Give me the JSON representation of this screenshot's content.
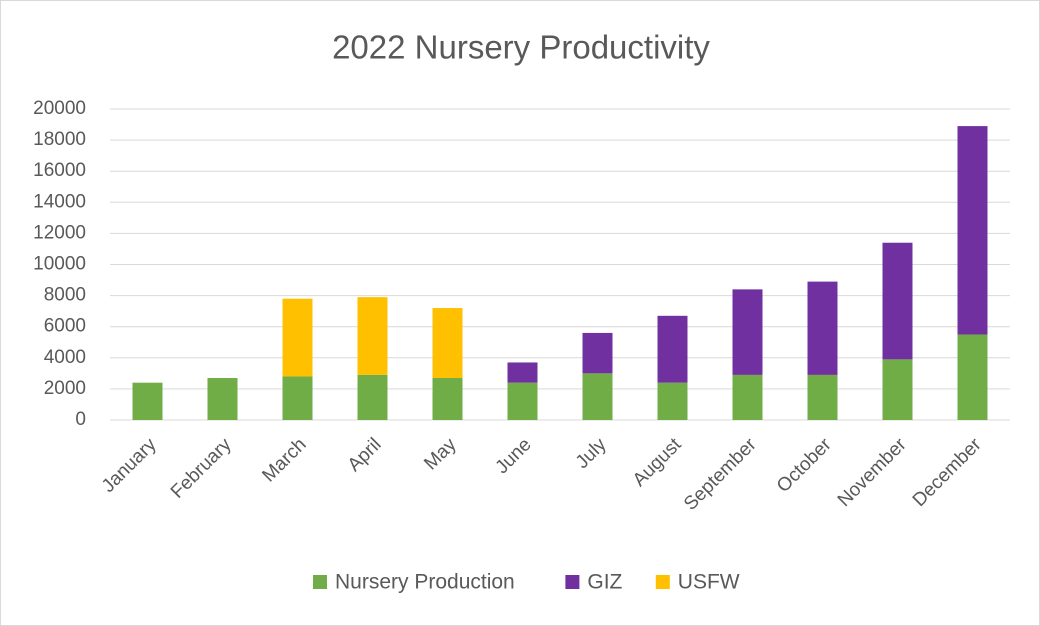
{
  "chart_data": {
    "type": "stacked_bar",
    "title": "2022 Nursery Productivity",
    "categories": [
      "January",
      "February",
      "March",
      "April",
      "May",
      "June",
      "July",
      "August",
      "September",
      "October",
      "November",
      "December"
    ],
    "series": [
      {
        "name": "Nursery Production",
        "color": "#70ad47",
        "values": [
          2400,
          2700,
          2800,
          2900,
          2700,
          2400,
          3000,
          2400,
          2900,
          2900,
          3900,
          5500
        ]
      },
      {
        "name": "GIZ",
        "color": "#7030a0",
        "values": [
          null,
          null,
          null,
          null,
          null,
          1300,
          2600,
          4300,
          5500,
          6000,
          7500,
          13400
        ]
      },
      {
        "name": "USFW",
        "color": "#ffc000",
        "values": [
          null,
          null,
          5000,
          5000,
          4500,
          null,
          null,
          null,
          null,
          null,
          null,
          null
        ]
      }
    ],
    "ylim": [
      0,
      20000
    ],
    "yticks": [
      0,
      2000,
      4000,
      6000,
      8000,
      10000,
      12000,
      14000,
      16000,
      18000,
      20000
    ],
    "grid": true,
    "legend": "bottom"
  }
}
